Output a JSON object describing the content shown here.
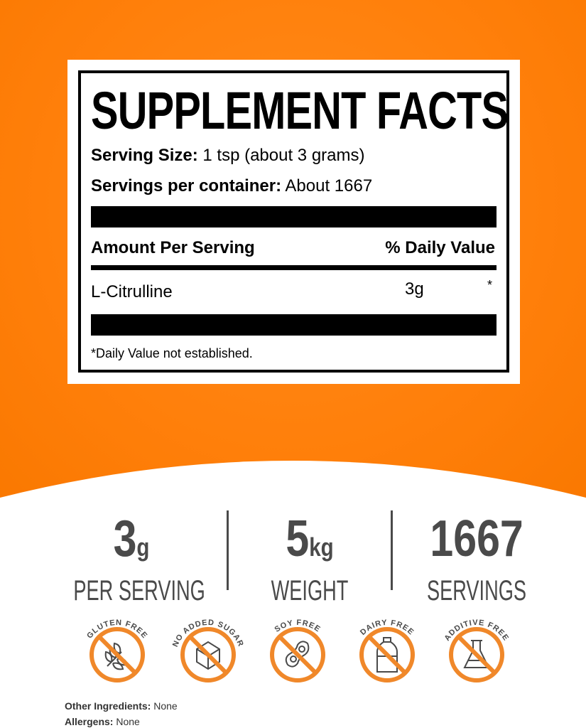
{
  "label": {
    "title": "SUPPLEMENT FACTS",
    "serving_size_label": "Serving Size:",
    "serving_size_value": "1 tsp (about 3 grams)",
    "servings_label": "Servings per container:",
    "servings_value": "About 1667",
    "amount_header": "Amount Per Serving",
    "dv_header": "% Daily Value",
    "ingredient": {
      "name": "L-Citrulline",
      "amount": "3g",
      "dv": "*"
    },
    "footnote": "*Daily Value not established."
  },
  "stats": [
    {
      "value": "3",
      "unit": "g",
      "caption": "PER SERVING"
    },
    {
      "value": "5",
      "unit": "kg",
      "caption": "WEIGHT"
    },
    {
      "value": "1667",
      "unit": "",
      "caption": "SERVINGS"
    }
  ],
  "badges": [
    {
      "label": "GLUTEN FREE",
      "icon": "wheat-icon"
    },
    {
      "label": "NO ADDED SUGAR",
      "icon": "sugar-cube-icon"
    },
    {
      "label": "SOY FREE",
      "icon": "soybean-icon"
    },
    {
      "label": "DAIRY FREE",
      "icon": "milk-bottle-icon"
    },
    {
      "label": "ADDITIVE FREE",
      "icon": "flask-icon"
    }
  ],
  "footer": {
    "other_label": "Other Ingredients:",
    "other_value": "None",
    "allergens_label": "Allergens:",
    "allergens_value": "None"
  },
  "colors": {
    "orange": "#ff7f0a",
    "badge_orange": "#f0882a",
    "text_gray": "#4a4a4a"
  }
}
